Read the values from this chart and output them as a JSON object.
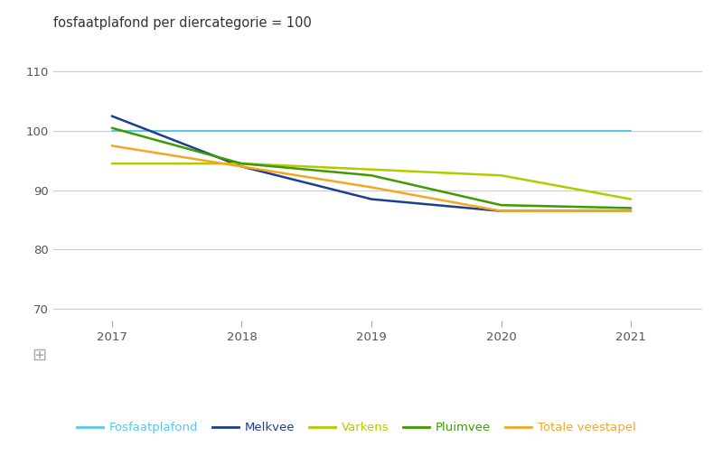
{
  "title": "fosfaatplafond per diercategorie = 100",
  "years": [
    2017,
    2018,
    2019,
    2020,
    2021
  ],
  "series": {
    "Fosfaatplafond": {
      "values": [
        100,
        100,
        100,
        100,
        100
      ],
      "color": "#5bc8e8",
      "linewidth": 1.5
    },
    "Melkvee": {
      "values": [
        102.5,
        94.0,
        88.5,
        86.5,
        86.5
      ],
      "color": "#1a3f8f",
      "linewidth": 1.8
    },
    "Varkens": {
      "values": [
        94.5,
        94.5,
        93.5,
        92.5,
        88.5
      ],
      "color": "#b5c900",
      "linewidth": 1.8
    },
    "Pluimvee": {
      "values": [
        100.5,
        94.5,
        92.5,
        87.5,
        87.0
      ],
      "color": "#3d9a00",
      "linewidth": 1.8
    },
    "Totale veestapel": {
      "values": [
        97.5,
        94.0,
        90.5,
        86.5,
        86.5
      ],
      "color": "#f5a623",
      "linewidth": 1.8
    }
  },
  "ylim": [
    68,
    115
  ],
  "yticks": [
    70,
    80,
    90,
    100,
    110
  ],
  "xlim": [
    2016.55,
    2021.55
  ],
  "bg_color": "#ffffff",
  "footer_bg_color": "#e5e5e5",
  "grid_color": "#cccccc",
  "title_fontsize": 10.5,
  "tick_fontsize": 9.5,
  "legend_fontsize": 9.5,
  "tick_color": "#555555"
}
